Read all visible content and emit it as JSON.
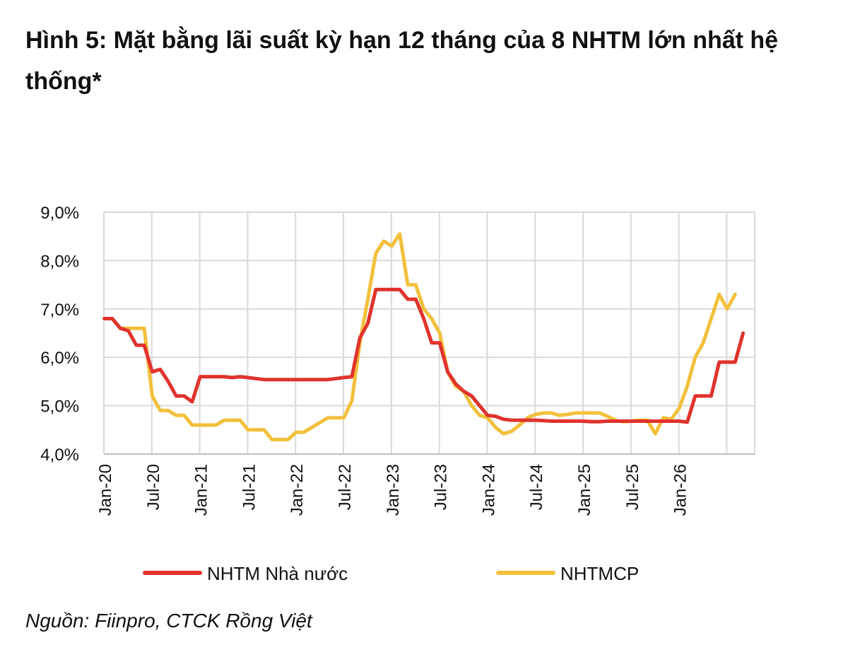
{
  "title": "Hình 5: Mặt bằng lãi suất kỳ hạn 12 tháng của 8 NHTM lớn nhất hệ thống*",
  "source": "Nguồn: Fiinpro, CTCK Rồng Việt",
  "chart_data": {
    "type": "line",
    "xlabel": "",
    "ylabel": "",
    "ylim": [
      4.0,
      9.0
    ],
    "yticks": [
      "4,0%",
      "5,0%",
      "6,0%",
      "7,0%",
      "8,0%",
      "9,0%"
    ],
    "xticks": [
      "Jan-20",
      "Jul-20",
      "Jan-21",
      "Jul-21",
      "Jan-22",
      "Jul-22",
      "Jan-23",
      "Jul-23",
      "Jan-24",
      "Jul-24",
      "Jan-25",
      "Jul-25",
      "Jan-26"
    ],
    "grid": true,
    "legend_position": "bottom",
    "series": [
      {
        "name": "NHTM Nhà nước",
        "color": "#e0332c",
        "values": [
          6.8,
          6.8,
          6.6,
          6.55,
          6.25,
          6.25,
          5.7,
          5.75,
          5.5,
          5.2,
          5.2,
          5.08,
          5.6,
          5.6,
          5.6,
          5.6,
          5.58,
          5.6,
          5.58,
          5.56,
          5.54,
          5.54,
          5.54,
          5.54,
          5.54,
          5.54,
          5.54,
          5.54,
          5.54,
          5.56,
          5.58,
          5.6,
          6.4,
          6.7,
          7.4,
          7.4,
          7.4,
          7.4,
          7.2,
          7.2,
          6.8,
          6.3,
          6.3,
          5.7,
          5.45,
          5.3,
          5.2,
          5.0,
          4.8,
          4.78,
          4.72,
          4.7,
          4.7,
          4.7,
          4.7,
          4.69,
          4.68,
          4.68,
          4.68,
          4.68,
          4.68,
          4.67,
          4.67,
          4.68,
          4.68,
          4.68,
          4.68,
          4.68,
          4.68,
          4.68,
          4.68,
          4.68,
          4.68,
          4.66,
          5.2,
          5.2,
          5.2,
          5.9,
          5.9,
          5.9,
          6.5
        ]
      },
      {
        "name": "NHTMCP",
        "color": "#f2c03c",
        "values": [
          6.8,
          6.8,
          6.6,
          6.6,
          6.6,
          6.6,
          5.2,
          4.9,
          4.9,
          4.8,
          4.8,
          4.6,
          4.6,
          4.6,
          4.6,
          4.7,
          4.7,
          4.7,
          4.5,
          4.5,
          4.5,
          4.3,
          4.3,
          4.3,
          4.45,
          4.45,
          4.55,
          4.65,
          4.75,
          4.75,
          4.75,
          5.1,
          6.3,
          7.2,
          8.15,
          8.4,
          8.3,
          8.55,
          7.5,
          7.5,
          7.0,
          6.8,
          6.5,
          5.7,
          5.4,
          5.3,
          5.0,
          4.8,
          4.75,
          4.55,
          4.42,
          4.47,
          4.6,
          4.75,
          4.82,
          4.85,
          4.85,
          4.8,
          4.82,
          4.85,
          4.85,
          4.85,
          4.85,
          4.78,
          4.7,
          4.67,
          4.68,
          4.7,
          4.7,
          4.42,
          4.75,
          4.72,
          4.95,
          5.4,
          6.0,
          6.3,
          6.8,
          7.3,
          7.0,
          7.3
        ]
      }
    ]
  }
}
